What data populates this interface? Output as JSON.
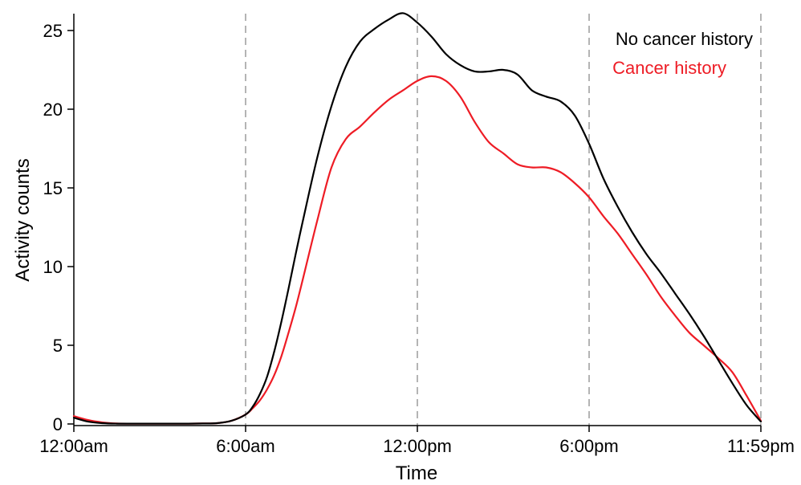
{
  "chart_data": {
    "type": "line",
    "title": "",
    "xlabel": "Time",
    "ylabel": "Activity counts",
    "xlim": [
      0,
      24
    ],
    "ylim": [
      0,
      26
    ],
    "x_ticks": [
      {
        "value": 0,
        "label": "12:00am"
      },
      {
        "value": 6,
        "label": "6:00am"
      },
      {
        "value": 12,
        "label": "12:00pm"
      },
      {
        "value": 18,
        "label": "6:00pm"
      },
      {
        "value": 24,
        "label": "11:59pm"
      }
    ],
    "y_ticks": [
      0,
      5,
      10,
      15,
      20,
      25
    ],
    "vertical_reference_lines": [
      6,
      12,
      18,
      24
    ],
    "grid": false,
    "legend_position": "top-right",
    "series": [
      {
        "name": "No cancer history",
        "color": "#000000",
        "x": [
          0,
          0.5,
          1,
          1.5,
          2,
          2.5,
          3,
          3.5,
          4,
          4.5,
          5,
          5.5,
          6,
          6.25,
          6.5,
          6.75,
          7,
          7.25,
          7.5,
          7.75,
          8,
          8.5,
          9,
          9.5,
          10,
          10.5,
          11,
          11.5,
          12,
          12.5,
          13,
          13.5,
          14,
          14.5,
          15,
          15.5,
          16,
          16.5,
          17,
          17.5,
          18,
          18.5,
          19,
          19.5,
          20,
          20.5,
          21,
          21.5,
          22,
          22.5,
          23,
          23.5,
          24
        ],
        "y": [
          0.4,
          0.15,
          0.05,
          0.02,
          0.02,
          0.02,
          0.02,
          0.02,
          0.02,
          0.03,
          0.05,
          0.2,
          0.6,
          1.1,
          1.9,
          3.0,
          4.6,
          6.5,
          8.6,
          10.8,
          12.9,
          16.9,
          20.2,
          22.7,
          24.3,
          25.1,
          25.7,
          26.1,
          25.5,
          24.6,
          23.5,
          22.8,
          22.4,
          22.4,
          22.5,
          22.2,
          21.2,
          20.8,
          20.5,
          19.6,
          17.8,
          15.6,
          13.8,
          12.2,
          10.8,
          9.6,
          8.3,
          7.0,
          5.6,
          4.1,
          2.6,
          1.2,
          0.15
        ]
      },
      {
        "name": "Cancer history",
        "color": "#ee1c25",
        "x": [
          0,
          0.5,
          1,
          1.5,
          2,
          2.5,
          3,
          3.5,
          4,
          4.5,
          5,
          5.5,
          6,
          6.25,
          6.5,
          6.75,
          7,
          7.25,
          7.5,
          7.75,
          8,
          8.5,
          9,
          9.5,
          10,
          10.5,
          11,
          11.5,
          12,
          12.5,
          13,
          13.5,
          14,
          14.5,
          15,
          15.5,
          16,
          16.5,
          17,
          17.5,
          18,
          18.5,
          19,
          19.5,
          20,
          20.5,
          21,
          21.5,
          22,
          22.5,
          23,
          23.5,
          24
        ],
        "y": [
          0.5,
          0.25,
          0.1,
          0.03,
          0.02,
          0.02,
          0.02,
          0.02,
          0.02,
          0.03,
          0.05,
          0.2,
          0.6,
          1.0,
          1.5,
          2.2,
          3.1,
          4.3,
          5.8,
          7.4,
          9.2,
          12.9,
          16.3,
          18.1,
          18.9,
          19.8,
          20.6,
          21.2,
          21.8,
          22.1,
          21.8,
          20.8,
          19.2,
          17.9,
          17.2,
          16.5,
          16.3,
          16.3,
          16.0,
          15.3,
          14.4,
          13.2,
          12.1,
          10.8,
          9.5,
          8.1,
          6.9,
          5.8,
          5.0,
          4.2,
          3.3,
          1.8,
          0.2
        ]
      }
    ]
  }
}
